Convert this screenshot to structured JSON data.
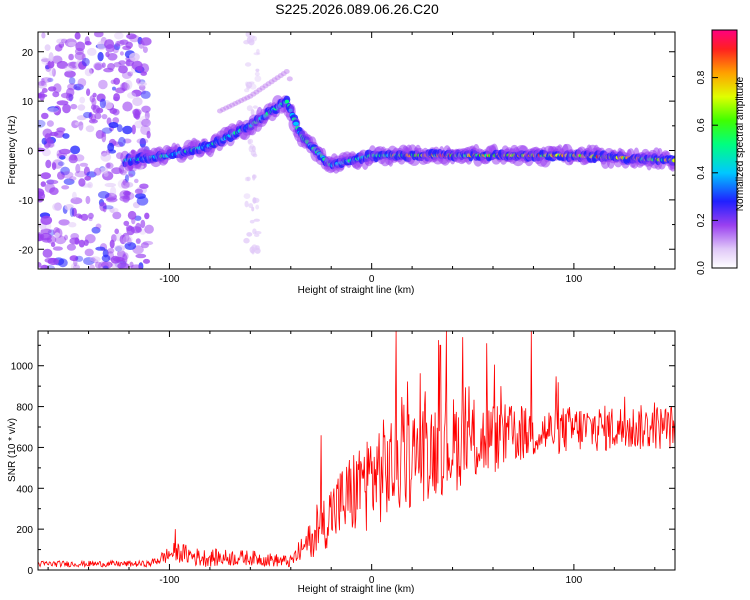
{
  "title": "S225.2026.089.06.26.C20",
  "chart_data": [
    {
      "type": "heatmap",
      "xlabel": "Height of straight line (km)",
      "ylabel": "Frequency (Hz)",
      "xlim": [
        -165,
        150
      ],
      "ylim": [
        -24,
        24
      ],
      "xticks": [
        -100,
        0,
        100
      ],
      "yticks": [
        20,
        10,
        0,
        -10,
        -20
      ],
      "colorbar": {
        "label": "Normalized spectral amplitude",
        "range": [
          0,
          1
        ],
        "ticks": [
          "0.0",
          "0.2",
          "0.4",
          "0.6",
          "0.8"
        ]
      },
      "ridge": {
        "description_points": [
          {
            "x": -122,
            "y": -2
          },
          {
            "x": -100,
            "y": -1
          },
          {
            "x": -80,
            "y": 1
          },
          {
            "x": -60,
            "y": 5
          },
          {
            "x": -42,
            "y": 10
          },
          {
            "x": -35,
            "y": 3
          },
          {
            "x": -20,
            "y": -3
          },
          {
            "x": 0,
            "y": -1
          },
          {
            "x": 50,
            "y": -1
          },
          {
            "x": 100,
            "y": -1
          },
          {
            "x": 150,
            "y": -2
          }
        ]
      }
    },
    {
      "type": "line",
      "xlabel": "Height of straight line (km)",
      "ylabel": "SNR (10 * v/v)",
      "xlim": [
        -165,
        150
      ],
      "ylim": [
        0,
        1170
      ],
      "xticks": [
        -100,
        0,
        100
      ],
      "yticks": [
        0,
        200,
        400,
        600,
        800,
        1000
      ],
      "series_color": "#ff0000",
      "trend": [
        {
          "x": -165,
          "y": 30
        },
        {
          "x": -110,
          "y": 30
        },
        {
          "x": -97,
          "y": 90
        },
        {
          "x": -85,
          "y": 60
        },
        {
          "x": -60,
          "y": 60
        },
        {
          "x": -40,
          "y": 40
        },
        {
          "x": -30,
          "y": 150
        },
        {
          "x": -20,
          "y": 280
        },
        {
          "x": 0,
          "y": 460
        },
        {
          "x": 30,
          "y": 600
        },
        {
          "x": 70,
          "y": 660
        },
        {
          "x": 100,
          "y": 690
        },
        {
          "x": 150,
          "y": 700
        }
      ],
      "noise": [
        {
          "x": -165,
          "y": 15
        },
        {
          "x": -110,
          "y": 15
        },
        {
          "x": -97,
          "y": 50
        },
        {
          "x": -40,
          "y": 30
        },
        {
          "x": -20,
          "y": 160
        },
        {
          "x": 0,
          "y": 260
        },
        {
          "x": 40,
          "y": 240
        },
        {
          "x": 80,
          "y": 120
        },
        {
          "x": 150,
          "y": 110
        }
      ],
      "peaks": [
        {
          "x": -97,
          "y": 200
        },
        {
          "x": -25,
          "y": 660
        },
        {
          "x": 12,
          "y": 1170
        },
        {
          "x": 45,
          "y": 1140
        },
        {
          "x": 79,
          "y": 1170
        },
        {
          "x": 57,
          "y": 1110
        },
        {
          "x": 34,
          "y": 1100
        }
      ]
    }
  ]
}
